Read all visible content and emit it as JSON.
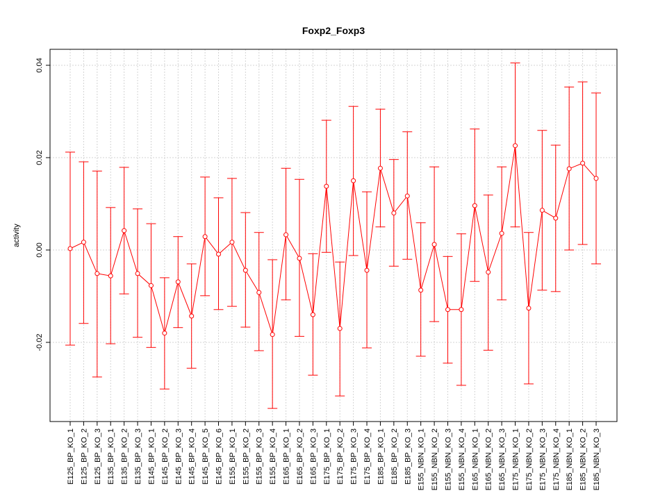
{
  "chart_data": {
    "type": "line",
    "title": "Foxp2_Foxp3",
    "xlabel": "",
    "ylabel": "activity",
    "ylim": [
      -0.0375,
      0.0435
    ],
    "yticks": [
      -0.02,
      0.0,
      0.02,
      0.04
    ],
    "ytick_labels": [
      "-0.02",
      "0.00",
      "0.02",
      "0.04"
    ],
    "grid": true,
    "color": "#ff0000",
    "categories": [
      "E125_BP_KO_1",
      "E125_BP_KO_2",
      "E125_BP_KO_3",
      "E135_BP_KO_1",
      "E135_BP_KO_2",
      "E135_BP_KO_3",
      "E145_BP_KO_1",
      "E145_BP_KO_2",
      "E145_BP_KO_3",
      "E145_BP_KO_4",
      "E145_BP_KO_5",
      "E145_BP_KO_6",
      "E155_BP_KO_1",
      "E155_BP_KO_2",
      "E155_BP_KO_3",
      "E155_BP_KO_4",
      "E165_BP_KO_1",
      "E165_BP_KO_2",
      "E165_BP_KO_3",
      "E175_BP_KO_1",
      "E175_BP_KO_2",
      "E175_BP_KO_3",
      "E175_BP_KO_4",
      "E185_BP_KO_1",
      "E185_BP_KO_2",
      "E185_BP_KO_3",
      "E155_NBN_KO_1",
      "E155_NBN_KO_2",
      "E155_NBN_KO_3",
      "E155_NBN_KO_4",
      "E165_NBN_KO_1",
      "E165_NBN_KO_2",
      "E165_NBN_KO_3",
      "E175_NBN_KO_1",
      "E175_NBN_KO_2",
      "E175_NBN_KO_3",
      "E175_NBN_KO_4",
      "E185_NBN_KO_1",
      "E185_NBN_KO_2",
      "E185_NBN_KO_3"
    ],
    "values": [
      0.0003,
      0.0017,
      -0.0051,
      -0.0056,
      0.0042,
      -0.0051,
      -0.0077,
      -0.018,
      -0.0069,
      -0.0143,
      0.0029,
      -0.0009,
      0.0017,
      -0.0044,
      -0.0092,
      -0.0183,
      0.0033,
      -0.0018,
      -0.014,
      0.0138,
      -0.017,
      0.015,
      -0.0044,
      0.0177,
      0.008,
      0.0117,
      -0.0087,
      0.0012,
      -0.0129,
      -0.0129,
      0.0096,
      -0.0048,
      0.0036,
      0.0226,
      -0.0126,
      0.0086,
      0.0069,
      0.0176,
      0.0188,
      0.0155
    ],
    "upper": [
      0.0212,
      0.0191,
      0.0171,
      0.0092,
      0.0179,
      0.0089,
      0.0057,
      -0.006,
      0.0029,
      -0.003,
      0.0158,
      0.0113,
      0.0155,
      0.0081,
      0.0038,
      -0.0021,
      0.0177,
      0.0153,
      -0.0008,
      0.0281,
      -0.0026,
      0.0311,
      0.0126,
      0.0305,
      0.0196,
      0.0256,
      0.0059,
      0.018,
      -0.0014,
      0.0035,
      0.0262,
      0.0119,
      0.018,
      0.0405,
      0.0038,
      0.0259,
      0.0227,
      0.0353,
      0.0364,
      0.034
    ],
    "lower": [
      -0.0206,
      -0.0159,
      -0.0275,
      -0.0203,
      -0.0095,
      -0.0189,
      -0.0211,
      -0.0301,
      -0.0168,
      -0.0256,
      -0.0099,
      -0.0129,
      -0.0122,
      -0.0167,
      -0.0218,
      -0.0343,
      -0.0108,
      -0.0187,
      -0.0271,
      -0.0005,
      -0.0316,
      -0.0012,
      -0.0212,
      0.005,
      -0.0035,
      -0.002,
      -0.023,
      -0.0155,
      -0.0245,
      -0.0293,
      -0.0068,
      -0.0217,
      -0.0108,
      0.005,
      -0.029,
      -0.0087,
      -0.009,
      0.0,
      0.0012,
      -0.003
    ]
  }
}
